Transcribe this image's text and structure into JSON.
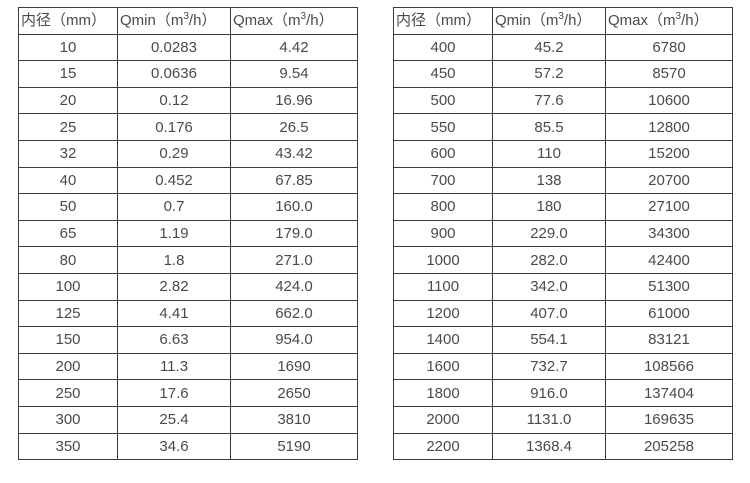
{
  "page": {
    "background_color": "#ffffff",
    "border_color": "#3b3b3b",
    "text_color": "#4a4a4a"
  },
  "tables": [
    {
      "name": "flow-rate-table-small-diameters",
      "headers": [
        "内径（mm）",
        "Qmin（m³/h）",
        "Qmax（m³/h）"
      ],
      "rows": [
        [
          "10",
          "0.0283",
          "4.42"
        ],
        [
          "15",
          "0.0636",
          "9.54"
        ],
        [
          "20",
          "0.12",
          "16.96"
        ],
        [
          "25",
          "0.176",
          "26.5"
        ],
        [
          "32",
          "0.29",
          "43.42"
        ],
        [
          "40",
          "0.452",
          "67.85"
        ],
        [
          "50",
          "0.7",
          "160.0"
        ],
        [
          "65",
          "1.19",
          "179.0"
        ],
        [
          "80",
          "1.8",
          "271.0"
        ],
        [
          "100",
          "2.82",
          "424.0"
        ],
        [
          "125",
          "4.41",
          "662.0"
        ],
        [
          "150",
          "6.63",
          "954.0"
        ],
        [
          "200",
          "11.3",
          "1690"
        ],
        [
          "250",
          "17.6",
          "2650"
        ],
        [
          "300",
          "25.4",
          "3810"
        ],
        [
          "350",
          "34.6",
          "5190"
        ]
      ]
    },
    {
      "name": "flow-rate-table-large-diameters",
      "headers": [
        "内径（mm）",
        "Qmin（m³/h）",
        "Qmax（m³/h）"
      ],
      "rows": [
        [
          "400",
          "45.2",
          "6780"
        ],
        [
          "450",
          "57.2",
          "8570"
        ],
        [
          "500",
          "77.6",
          "10600"
        ],
        [
          "550",
          "85.5",
          "12800"
        ],
        [
          "600",
          "110",
          "15200"
        ],
        [
          "700",
          "138",
          "20700"
        ],
        [
          "800",
          "180",
          "27100"
        ],
        [
          "900",
          "229.0",
          "34300"
        ],
        [
          "1000",
          "282.0",
          "42400"
        ],
        [
          "1100",
          "342.0",
          "51300"
        ],
        [
          "1200",
          "407.0",
          "61000"
        ],
        [
          "1400",
          "554.1",
          "83121"
        ],
        [
          "1600",
          "732.7",
          "108566"
        ],
        [
          "1800",
          "916.0",
          "137404"
        ],
        [
          "2000",
          "1131.0",
          "169635"
        ],
        [
          "2200",
          "1368.4",
          "205258"
        ]
      ]
    }
  ]
}
